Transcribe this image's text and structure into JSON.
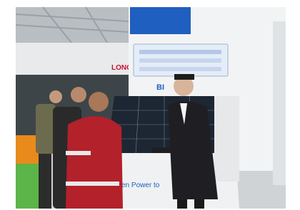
{
  "signs": {
    "brand": "LONGi",
    "booth": "BI",
    "banner": "en Power to"
  }
}
